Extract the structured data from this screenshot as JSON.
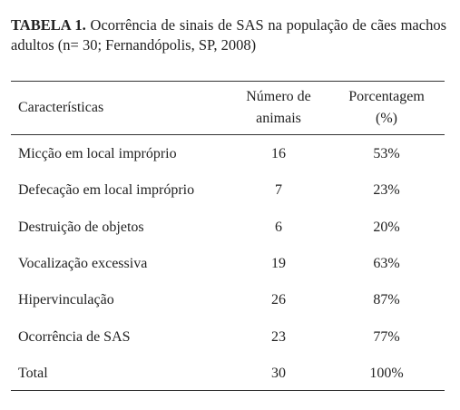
{
  "caption": {
    "label": "TABELA 1.",
    "text": "Ocorrência de sinais de SAS na população de cães machos adultos (n= 30; Fernandópolis, SP, 2008)"
  },
  "table": {
    "header": [
      [
        "Características"
      ],
      [
        "Número de",
        "animais"
      ],
      [
        "Porcentagem",
        "(%)"
      ]
    ],
    "rows": [
      [
        "Micção em local impróprio",
        "16",
        "53%"
      ],
      [
        "Defecação em local impróprio",
        "7",
        "23%"
      ],
      [
        "Destruição de objetos",
        "6",
        "20%"
      ],
      [
        "Vocalização excessiva",
        "19",
        "63%"
      ],
      [
        "Hipervinculação",
        "26",
        "87%"
      ],
      [
        "Ocorrência de SAS",
        "23",
        "77%"
      ],
      [
        "Total",
        "30",
        "100%"
      ]
    ]
  }
}
